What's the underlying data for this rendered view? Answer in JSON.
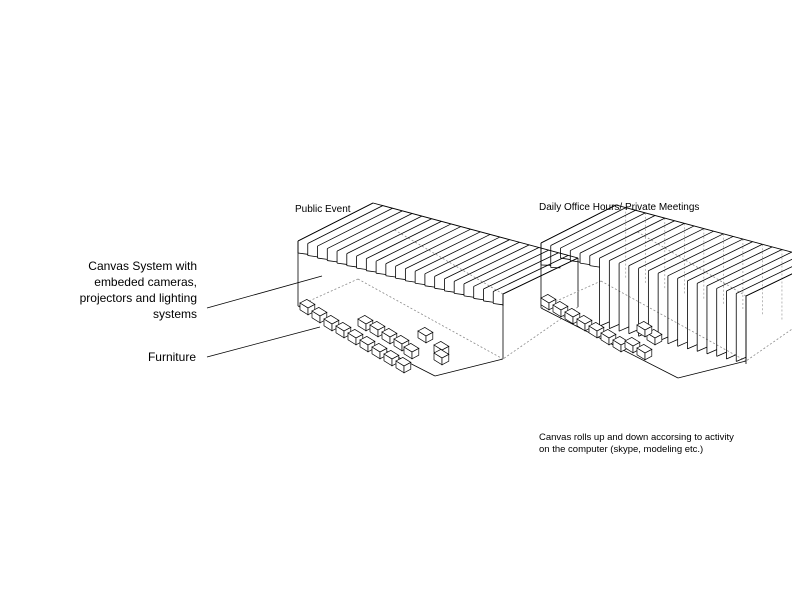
{
  "titles": {
    "public_event": "Public Event",
    "private": "Daily Office Hours/ Private Meetings"
  },
  "labels": {
    "canvas_system": [
      "Canvas System with",
      "embeded cameras,",
      "projectors and lighting",
      "systems"
    ],
    "furniture": "Furniture"
  },
  "note": [
    "Canvas rolls up and down accorsing to activity",
    "on the computer (skype, modeling etc.)"
  ],
  "colors": {
    "line": "#000000",
    "dashed": "#8a8a8a",
    "background": "#ffffff"
  }
}
